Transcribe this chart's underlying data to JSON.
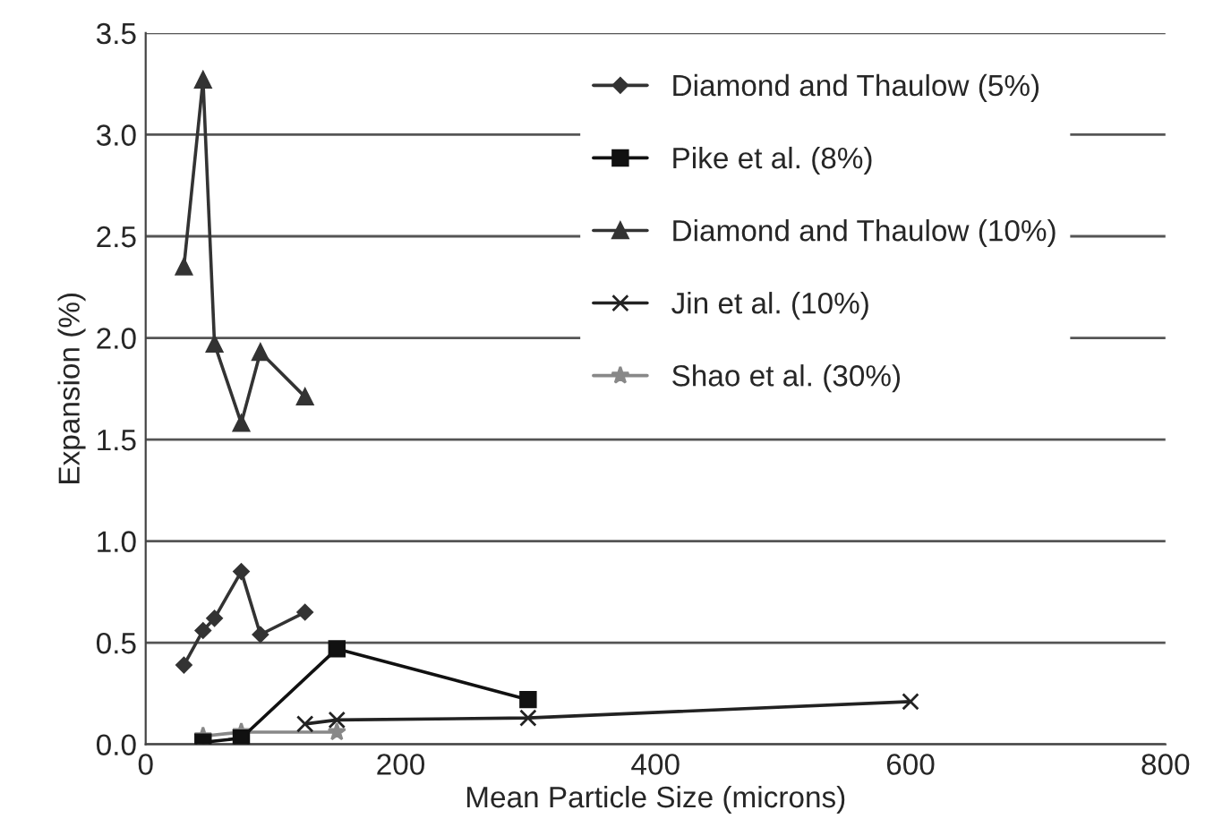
{
  "chart_data": {
    "type": "line",
    "xlabel": "Mean Particle Size (microns)",
    "ylabel": "Expansion (%)",
    "xlim": [
      0,
      800
    ],
    "xticks": [
      0,
      200,
      400,
      600,
      800
    ],
    "ylim": [
      0,
      3.5
    ],
    "yticks": [
      {
        "value": 0,
        "label": "0.0"
      },
      {
        "value": 0.5,
        "label": "0.5"
      },
      {
        "value": 1,
        "label": "1.0"
      },
      {
        "value": 1.5,
        "label": "1.5"
      },
      {
        "value": 2,
        "label": "2.0"
      },
      {
        "value": 2.5,
        "label": "2.5"
      },
      {
        "value": 3,
        "label": "3.0"
      },
      {
        "value": 3.5,
        "label": "3.5"
      }
    ],
    "grid": "y",
    "legend": "top right",
    "series": [
      {
        "name": "Diamond and Thaulow (5%)",
        "color": "#333333",
        "marker": "diamond",
        "x": [
          30,
          45,
          54,
          75,
          90,
          125
        ],
        "values": [
          0.39,
          0.56,
          0.62,
          0.85,
          0.54,
          0.65
        ]
      },
      {
        "name": "Pike et al. (8%)",
        "color": "#111111",
        "marker": "square",
        "x": [
          45,
          75,
          150,
          300
        ],
        "values": [
          0.01,
          0.03,
          0.47,
          0.22
        ]
      },
      {
        "name": "Diamond and Thaulow (10%)",
        "color": "#333333",
        "marker": "triangle",
        "x": [
          30,
          45,
          54,
          75,
          90,
          125
        ],
        "values": [
          2.35,
          3.27,
          1.97,
          1.58,
          1.93,
          1.71
        ]
      },
      {
        "name": "Jin et al. (10%)",
        "color": "#222222",
        "marker": "cross",
        "x": [
          125,
          150,
          300,
          600
        ],
        "values": [
          0.1,
          0.12,
          0.13,
          0.21
        ]
      },
      {
        "name": "Shao et al. (30%)",
        "color": "#888888",
        "marker": "star",
        "x": [
          45,
          75,
          150
        ],
        "values": [
          0.04,
          0.06,
          0.06
        ]
      }
    ]
  }
}
